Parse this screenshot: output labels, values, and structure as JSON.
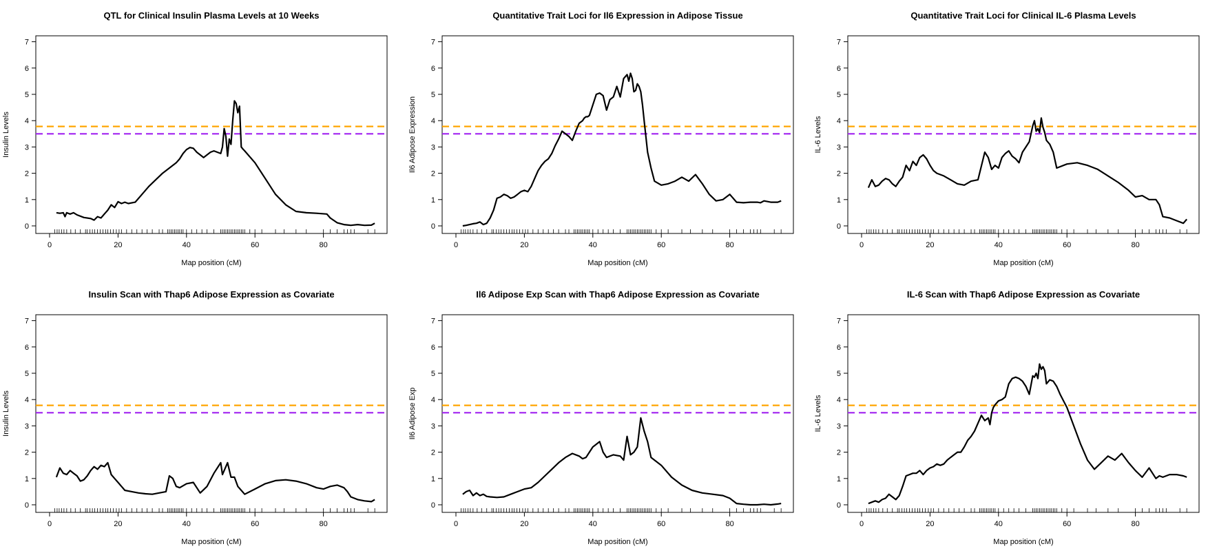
{
  "chart_data": [
    {
      "type": "line",
      "title": "QTL for Clinical Insulin Plasma Levels at 10 Weeks",
      "xlabel": "Map position (cM)",
      "ylabel": "Insulin Levels",
      "xlim": [
        0,
        95
      ],
      "ylim": [
        0,
        7
      ],
      "xticks": [
        "0",
        "20",
        "40",
        "60",
        "80"
      ],
      "yticks": [
        "0",
        "1",
        "2",
        "3",
        "4",
        "5",
        "6",
        "7"
      ],
      "thresholds": [
        {
          "value": 3.78,
          "color": "#ffa500"
        },
        {
          "value": 3.5,
          "color": "#a020f0"
        }
      ],
      "series": [
        {
          "x": [
            2,
            3,
            4,
            4.5,
            5,
            6,
            7,
            8,
            10,
            12,
            13,
            14,
            15,
            16,
            17,
            18,
            19,
            20,
            21,
            22,
            23,
            25,
            27,
            29,
            31,
            33,
            35,
            36,
            37,
            38,
            39,
            40,
            41,
            42,
            43,
            44,
            45,
            46,
            47,
            48,
            49,
            50,
            50.5,
            51,
            51.5,
            52,
            52.5,
            53,
            53.5,
            54,
            54.5,
            55,
            55.5,
            56,
            56.5,
            57,
            60,
            63,
            66,
            69,
            72,
            75,
            78,
            81,
            82,
            84,
            86,
            88,
            90,
            92,
            94,
            95
          ],
          "y": [
            0.5,
            0.48,
            0.5,
            0.35,
            0.5,
            0.45,
            0.5,
            0.42,
            0.32,
            0.28,
            0.22,
            0.35,
            0.3,
            0.45,
            0.6,
            0.8,
            0.7,
            0.92,
            0.85,
            0.9,
            0.85,
            0.9,
            1.2,
            1.5,
            1.75,
            2.0,
            2.2,
            2.3,
            2.4,
            2.55,
            2.75,
            2.9,
            2.98,
            2.95,
            2.8,
            2.7,
            2.6,
            2.7,
            2.8,
            2.85,
            2.8,
            2.75,
            3.0,
            3.7,
            3.4,
            2.65,
            3.3,
            3.1,
            4.0,
            4.75,
            4.65,
            4.3,
            4.55,
            3.0,
            2.92,
            2.85,
            2.4,
            1.8,
            1.2,
            0.8,
            0.55,
            0.5,
            0.48,
            0.45,
            0.3,
            0.12,
            0.05,
            0.02,
            0.05,
            0.02,
            0.03,
            0.1
          ]
        }
      ]
    },
    {
      "type": "line",
      "title": "Quantitative Trait Loci for Il6 Expression in Adipose Tissue",
      "xlabel": "Map position (cM)",
      "ylabel": "Il6 Adipose Expression",
      "xlim": [
        0,
        95
      ],
      "ylim": [
        0,
        7
      ],
      "xticks": [
        "0",
        "20",
        "40",
        "60",
        "80"
      ],
      "yticks": [
        "0",
        "1",
        "2",
        "3",
        "4",
        "5",
        "6",
        "7"
      ],
      "thresholds": [
        {
          "value": 3.78,
          "color": "#ffa500"
        },
        {
          "value": 3.5,
          "color": "#a020f0"
        }
      ],
      "series": [
        {
          "x": [
            2,
            3,
            4,
            5,
            6,
            7,
            8,
            9,
            10,
            11,
            12,
            13,
            14,
            15,
            16,
            17,
            18,
            19,
            20,
            21,
            22,
            23,
            24,
            25,
            26,
            27,
            28,
            29,
            30,
            31,
            32,
            33,
            34,
            35,
            36,
            37,
            37.5,
            38,
            38.5,
            39,
            40,
            41,
            42,
            43,
            44,
            45,
            46,
            47,
            48,
            49,
            50,
            50.5,
            51,
            51.5,
            52,
            52.5,
            53,
            53.5,
            54,
            54.5,
            55,
            55.5,
            56,
            57,
            58,
            60,
            62,
            64,
            66,
            68,
            70,
            72,
            74,
            76,
            78,
            80,
            82,
            84,
            86,
            88,
            89,
            90,
            92,
            94,
            95
          ],
          "y": [
            0.0,
            0.02,
            0.05,
            0.08,
            0.1,
            0.15,
            0.05,
            0.1,
            0.3,
            0.6,
            1.05,
            1.1,
            1.2,
            1.15,
            1.05,
            1.1,
            1.2,
            1.3,
            1.35,
            1.3,
            1.5,
            1.8,
            2.1,
            2.3,
            2.45,
            2.55,
            2.75,
            3.05,
            3.3,
            3.6,
            3.5,
            3.4,
            3.25,
            3.6,
            3.9,
            4.0,
            4.1,
            4.15,
            4.15,
            4.2,
            4.6,
            5.0,
            5.05,
            4.95,
            4.4,
            4.8,
            4.9,
            5.3,
            4.9,
            5.6,
            5.75,
            5.5,
            5.8,
            5.6,
            5.1,
            5.15,
            5.4,
            5.3,
            5.1,
            4.6,
            4.0,
            3.4,
            2.8,
            2.2,
            1.7,
            1.55,
            1.6,
            1.7,
            1.85,
            1.7,
            1.95,
            1.6,
            1.2,
            0.95,
            1.0,
            1.2,
            0.9,
            0.88,
            0.9,
            0.9,
            0.88,
            0.95,
            0.9,
            0.9,
            0.95
          ]
        }
      ]
    },
    {
      "type": "line",
      "title": "Quantitative Trait Loci for Clinical IL-6 Plasma Levels",
      "xlabel": "Map position (cM)",
      "ylabel": "IL-6 Levels",
      "xlim": [
        0,
        95
      ],
      "ylim": [
        0,
        7
      ],
      "xticks": [
        "0",
        "20",
        "40",
        "60",
        "80"
      ],
      "yticks": [
        "0",
        "1",
        "2",
        "3",
        "4",
        "5",
        "6",
        "7"
      ],
      "thresholds": [
        {
          "value": 3.78,
          "color": "#ffa500"
        },
        {
          "value": 3.5,
          "color": "#a020f0"
        }
      ],
      "series": [
        {
          "x": [
            2,
            3,
            4,
            5,
            6,
            7,
            8,
            9,
            10,
            11,
            12,
            13,
            14,
            15,
            16,
            17,
            18,
            19,
            20,
            21,
            22,
            24,
            26,
            28,
            30,
            32,
            34,
            36,
            37,
            38,
            39,
            40,
            41,
            42,
            43,
            44,
            45,
            46,
            47,
            48,
            49,
            50,
            50.5,
            51,
            51.5,
            52,
            52.5,
            53,
            53.5,
            54,
            55,
            56,
            57,
            60,
            63,
            66,
            69,
            72,
            75,
            78,
            80,
            82,
            84,
            86,
            87,
            88,
            90,
            92,
            94,
            95
          ],
          "y": [
            1.45,
            1.75,
            1.5,
            1.55,
            1.7,
            1.8,
            1.75,
            1.6,
            1.5,
            1.7,
            1.85,
            2.3,
            2.1,
            2.45,
            2.3,
            2.6,
            2.7,
            2.55,
            2.3,
            2.1,
            2.0,
            1.9,
            1.75,
            1.6,
            1.55,
            1.7,
            1.75,
            2.8,
            2.6,
            2.15,
            2.3,
            2.2,
            2.6,
            2.75,
            2.85,
            2.65,
            2.55,
            2.4,
            2.8,
            3.0,
            3.2,
            3.8,
            4.0,
            3.6,
            3.7,
            3.55,
            4.1,
            3.75,
            3.55,
            3.25,
            3.1,
            2.8,
            2.2,
            2.35,
            2.4,
            2.3,
            2.15,
            1.9,
            1.65,
            1.35,
            1.1,
            1.15,
            1.0,
            1.0,
            0.8,
            0.35,
            0.3,
            0.2,
            0.1,
            0.25
          ]
        }
      ]
    },
    {
      "type": "line",
      "title": "Insulin Scan with Thap6  Adipose Expression as Covariate",
      "xlabel": "Map position (cM)",
      "ylabel": "Insulin Levels",
      "xlim": [
        0,
        95
      ],
      "ylim": [
        0,
        7
      ],
      "xticks": [
        "0",
        "20",
        "40",
        "60",
        "80"
      ],
      "yticks": [
        "0",
        "1",
        "2",
        "3",
        "4",
        "5",
        "6",
        "7"
      ],
      "thresholds": [
        {
          "value": 3.78,
          "color": "#ffa500"
        },
        {
          "value": 3.5,
          "color": "#a020f0"
        }
      ],
      "series": [
        {
          "x": [
            2,
            3,
            4,
            5,
            6,
            7,
            8,
            9,
            10,
            11,
            12,
            13,
            14,
            15,
            16,
            17,
            18,
            19,
            20,
            21,
            22,
            24,
            26,
            28,
            30,
            32,
            34,
            35,
            36,
            37,
            38,
            40,
            42,
            44,
            46,
            48,
            50,
            50.5,
            51,
            52,
            53,
            54,
            55,
            56,
            57,
            60,
            63,
            66,
            69,
            72,
            75,
            78,
            80,
            82,
            84,
            86,
            87,
            88,
            90,
            92,
            94,
            95
          ],
          "y": [
            1.05,
            1.4,
            1.2,
            1.15,
            1.3,
            1.2,
            1.1,
            0.9,
            0.95,
            1.1,
            1.3,
            1.45,
            1.35,
            1.5,
            1.45,
            1.6,
            1.15,
            1.0,
            0.85,
            0.7,
            0.55,
            0.5,
            0.45,
            0.42,
            0.4,
            0.45,
            0.5,
            1.1,
            1.0,
            0.7,
            0.65,
            0.8,
            0.85,
            0.45,
            0.7,
            1.2,
            1.6,
            1.15,
            1.3,
            1.6,
            1.05,
            1.05,
            0.7,
            0.55,
            0.4,
            0.6,
            0.8,
            0.92,
            0.95,
            0.9,
            0.8,
            0.65,
            0.6,
            0.7,
            0.75,
            0.65,
            0.5,
            0.3,
            0.2,
            0.15,
            0.12,
            0.2
          ]
        }
      ]
    },
    {
      "type": "line",
      "title": "Il6 Adipose Exp Scan with Thap6 Adipose Expression as Covariate",
      "xlabel": "Map position (cM)",
      "ylabel": "Il6 Adipose Exp",
      "xlim": [
        0,
        95
      ],
      "ylim": [
        0,
        7
      ],
      "xticks": [
        "0",
        "20",
        "40",
        "60",
        "80"
      ],
      "yticks": [
        "0",
        "1",
        "2",
        "3",
        "4",
        "5",
        "6",
        "7"
      ],
      "thresholds": [
        {
          "value": 3.78,
          "color": "#ffa500"
        },
        {
          "value": 3.5,
          "color": "#a020f0"
        }
      ],
      "series": [
        {
          "x": [
            2,
            3,
            4,
            5,
            6,
            7,
            8,
            9,
            10,
            12,
            14,
            16,
            18,
            20,
            22,
            24,
            26,
            28,
            30,
            32,
            34,
            36,
            37,
            38,
            39,
            40,
            41,
            42,
            43,
            44,
            46,
            48,
            49,
            50,
            51,
            52,
            53,
            54,
            55,
            56,
            57,
            60,
            63,
            66,
            69,
            72,
            75,
            78,
            80,
            82,
            84,
            86,
            88,
            90,
            92,
            94,
            95
          ],
          "y": [
            0.4,
            0.5,
            0.55,
            0.35,
            0.45,
            0.35,
            0.4,
            0.32,
            0.3,
            0.28,
            0.3,
            0.4,
            0.5,
            0.6,
            0.65,
            0.85,
            1.1,
            1.35,
            1.6,
            1.8,
            1.95,
            1.85,
            1.75,
            1.8,
            2.0,
            2.2,
            2.3,
            2.4,
            2.0,
            1.8,
            1.9,
            1.85,
            1.7,
            2.6,
            1.9,
            2.0,
            2.2,
            3.3,
            2.8,
            2.4,
            1.8,
            1.5,
            1.05,
            0.75,
            0.55,
            0.45,
            0.4,
            0.35,
            0.25,
            0.05,
            0.02,
            0.0,
            0.0,
            0.02,
            0.0,
            0.03,
            0.05
          ]
        }
      ]
    },
    {
      "type": "line",
      "title": "IL-6 Scan with Thap6 Adipose Expression as Covariate",
      "xlabel": "Map position (cM)",
      "ylabel": "IL-6 Levels",
      "xlim": [
        0,
        95
      ],
      "ylim": [
        0,
        7
      ],
      "xticks": [
        "0",
        "20",
        "40",
        "60",
        "80"
      ],
      "yticks": [
        "0",
        "1",
        "2",
        "3",
        "4",
        "5",
        "6",
        "7"
      ],
      "thresholds": [
        {
          "value": 3.78,
          "color": "#ffa500"
        },
        {
          "value": 3.5,
          "color": "#a020f0"
        }
      ],
      "series": [
        {
          "x": [
            2,
            3,
            4,
            5,
            6,
            7,
            8,
            9,
            10,
            11,
            12,
            13,
            14,
            15,
            16,
            17,
            18,
            19,
            20,
            21,
            22,
            23,
            24,
            25,
            26,
            27,
            28,
            29,
            30,
            31,
            32,
            33,
            34,
            35,
            36,
            37,
            37.5,
            38,
            38.5,
            39,
            40,
            41,
            42,
            43,
            44,
            45,
            46,
            47,
            48,
            49,
            50,
            50.5,
            51,
            51.5,
            52,
            52.5,
            53,
            53.5,
            54,
            55,
            56,
            57,
            58,
            60,
            62,
            64,
            66,
            68,
            70,
            72,
            74,
            76,
            78,
            80,
            82,
            84,
            86,
            87,
            88,
            89,
            90,
            92,
            94,
            95
          ],
          "y": [
            0.05,
            0.1,
            0.15,
            0.1,
            0.2,
            0.25,
            0.4,
            0.3,
            0.2,
            0.35,
            0.7,
            1.1,
            1.15,
            1.2,
            1.2,
            1.3,
            1.15,
            1.3,
            1.4,
            1.45,
            1.55,
            1.5,
            1.55,
            1.7,
            1.8,
            1.9,
            2.0,
            2.0,
            2.2,
            2.45,
            2.6,
            2.8,
            3.1,
            3.4,
            3.2,
            3.3,
            3.05,
            3.5,
            3.7,
            3.8,
            3.95,
            4.0,
            4.1,
            4.6,
            4.8,
            4.85,
            4.8,
            4.7,
            4.5,
            4.2,
            4.9,
            4.85,
            5.0,
            4.8,
            5.35,
            5.15,
            5.25,
            5.1,
            4.6,
            4.75,
            4.7,
            4.5,
            4.2,
            3.7,
            3.0,
            2.3,
            1.7,
            1.35,
            1.6,
            1.85,
            1.7,
            1.95,
            1.6,
            1.3,
            1.05,
            1.4,
            1.0,
            1.1,
            1.05,
            1.1,
            1.15,
            1.15,
            1.1,
            1.05
          ]
        }
      ]
    }
  ],
  "marker_positions_cM": [
    1.5,
    2.2,
    2.8,
    3.5,
    4.2,
    5,
    6.2,
    7.5,
    9,
    10.5,
    11,
    11.8,
    12.5,
    13.2,
    14,
    14.8,
    15.6,
    16.4,
    17,
    17.8,
    18.6,
    19.5,
    20.3,
    21,
    22.5,
    24,
    25.5,
    27,
    28.5,
    30,
    32,
    33,
    34.5,
    35,
    35.5,
    36,
    36.5,
    37,
    37.5,
    38,
    38.5,
    39,
    40,
    41.5,
    43,
    44.5,
    46,
    48,
    50,
    50.5,
    51,
    51.5,
    52,
    52.5,
    53,
    53.5,
    54,
    54.5,
    55,
    55.5,
    56,
    56.5,
    57,
    58.5,
    60,
    62,
    66,
    68.5,
    72,
    75,
    80,
    82,
    84,
    86,
    87,
    88,
    89,
    93,
    95
  ]
}
